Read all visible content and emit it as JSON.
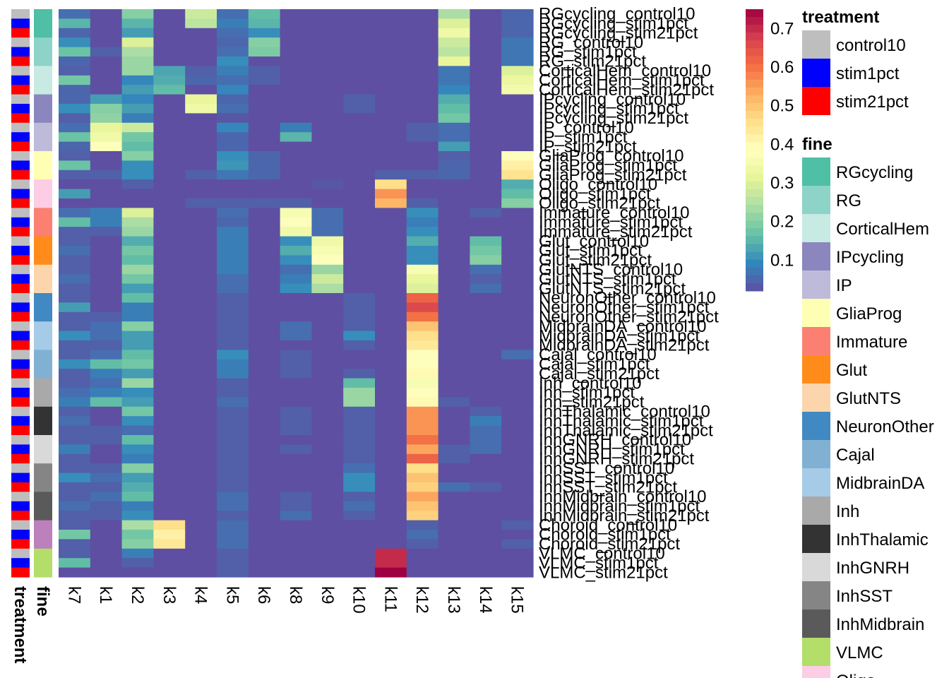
{
  "chart_data": {
    "type": "heatmap",
    "columns": [
      "k7",
      "k1",
      "k2",
      "k3",
      "k4",
      "k5",
      "k6",
      "k8",
      "k9",
      "k10",
      "k11",
      "k12",
      "k13",
      "k14",
      "k15"
    ],
    "rows": [
      "RGcycling_control10",
      "RGcycling_stim1pct",
      "RGcycling_stim21pct",
      "RG_control10",
      "RG_stim1pct",
      "RG_stim21pct",
      "CorticalHem_control10",
      "CorticalHem_stim1pct",
      "CorticalHem_stim21pct",
      "IPcycling_control10",
      "IPcycling_stim1pct",
      "IPcycling_stim21pct",
      "IP_control10",
      "IP_stim1pct",
      "IP_stim21pct",
      "GliaProg_control10",
      "GliaProg_stim1pct",
      "GliaProg_stim21pct",
      "Oligo_control10",
      "Oligo_stim1pct",
      "Oligo_stim21pct",
      "Immature_control10",
      "Immature_stim1pct",
      "Immature_stim21pct",
      "Glut_control10",
      "Glut_stim1pct",
      "Glut_stim21pct",
      "GlutNTS_control10",
      "GlutNTS_stim1pct",
      "GlutNTS_stim21pct",
      "NeuronOther_control10",
      "NeuronOther_stim1pct",
      "NeuronOther_stim21pct",
      "MidbrainDA_control10",
      "MidbrainDA_stim1pct",
      "MidbrainDA_stim21pct",
      "Cajal_control10",
      "Cajal_stim1pct",
      "Cajal_stim21pct",
      "Inh_control10",
      "Inh_stim1pct",
      "Inh_stim21pct",
      "InhThalamic_control10",
      "InhThalamic_stim1pct",
      "InhThalamic_stim21pct",
      "InhGNRH_control10",
      "InhGNRH_stim1pct",
      "InhGNRH_stim21pct",
      "InhSST_control10",
      "InhSST_stim1pct",
      "InhSST_stim21pct",
      "InhMidbrain_control10",
      "InhMidbrain_stim1pct",
      "InhMidbrain_stim21pct",
      "Choroid_control10",
      "Choroid_stim1pct",
      "Choroid_stim21pct",
      "VLMC_control10",
      "VLMC_stim1pct",
      "VLMC_stim21pct"
    ],
    "values": [
      [
        0.06,
        0.02,
        0.2,
        0.02,
        0.28,
        0.06,
        0.16,
        0.02,
        0.02,
        0.02,
        0.02,
        0.02,
        0.24,
        0.02,
        0.05
      ],
      [
        0.15,
        0.02,
        0.15,
        0.02,
        0.26,
        0.08,
        0.15,
        0.02,
        0.02,
        0.02,
        0.02,
        0.02,
        0.3,
        0.02,
        0.05
      ],
      [
        0.05,
        0.02,
        0.12,
        0.02,
        0.02,
        0.06,
        0.1,
        0.02,
        0.02,
        0.02,
        0.02,
        0.02,
        0.34,
        0.02,
        0.05
      ],
      [
        0.1,
        0.02,
        0.3,
        0.02,
        0.02,
        0.05,
        0.2,
        0.02,
        0.02,
        0.02,
        0.02,
        0.02,
        0.28,
        0.02,
        0.07
      ],
      [
        0.17,
        0.04,
        0.24,
        0.02,
        0.02,
        0.06,
        0.19,
        0.02,
        0.02,
        0.02,
        0.02,
        0.02,
        0.26,
        0.02,
        0.07
      ],
      [
        0.05,
        0.02,
        0.22,
        0.02,
        0.02,
        0.1,
        0.02,
        0.02,
        0.02,
        0.02,
        0.02,
        0.02,
        0.32,
        0.02,
        0.07
      ],
      [
        0.04,
        0.02,
        0.22,
        0.13,
        0.04,
        0.08,
        0.04,
        0.02,
        0.02,
        0.02,
        0.02,
        0.02,
        0.07,
        0.02,
        0.3
      ],
      [
        0.18,
        0.02,
        0.09,
        0.14,
        0.05,
        0.06,
        0.04,
        0.02,
        0.02,
        0.02,
        0.02,
        0.02,
        0.07,
        0.02,
        0.33
      ],
      [
        0.05,
        0.02,
        0.12,
        0.16,
        0.02,
        0.09,
        0.02,
        0.02,
        0.02,
        0.02,
        0.02,
        0.02,
        0.09,
        0.02,
        0.35
      ],
      [
        0.05,
        0.12,
        0.09,
        0.02,
        0.32,
        0.05,
        0.02,
        0.02,
        0.02,
        0.04,
        0.02,
        0.02,
        0.14,
        0.02,
        0.02
      ],
      [
        0.1,
        0.2,
        0.12,
        0.02,
        0.34,
        0.06,
        0.02,
        0.02,
        0.02,
        0.04,
        0.02,
        0.02,
        0.16,
        0.02,
        0.02
      ],
      [
        0.04,
        0.21,
        0.08,
        0.02,
        0.02,
        0.03,
        0.02,
        0.02,
        0.02,
        0.02,
        0.02,
        0.02,
        0.18,
        0.02,
        0.02
      ],
      [
        0.06,
        0.32,
        0.28,
        0.02,
        0.02,
        0.09,
        0.02,
        0.08,
        0.02,
        0.02,
        0.02,
        0.04,
        0.06,
        0.02,
        0.02
      ],
      [
        0.17,
        0.34,
        0.18,
        0.02,
        0.02,
        0.05,
        0.02,
        0.15,
        0.02,
        0.02,
        0.02,
        0.04,
        0.06,
        0.02,
        0.02
      ],
      [
        0.05,
        0.38,
        0.16,
        0.02,
        0.02,
        0.05,
        0.02,
        0.02,
        0.02,
        0.02,
        0.02,
        0.02,
        0.12,
        0.02,
        0.02
      ],
      [
        0.04,
        0.02,
        0.2,
        0.02,
        0.02,
        0.1,
        0.05,
        0.02,
        0.02,
        0.02,
        0.02,
        0.02,
        0.04,
        0.02,
        0.38
      ],
      [
        0.17,
        0.02,
        0.1,
        0.02,
        0.02,
        0.11,
        0.05,
        0.02,
        0.02,
        0.02,
        0.02,
        0.02,
        0.05,
        0.02,
        0.42
      ],
      [
        0.04,
        0.04,
        0.1,
        0.02,
        0.04,
        0.07,
        0.05,
        0.02,
        0.02,
        0.02,
        0.04,
        0.04,
        0.05,
        0.02,
        0.45
      ],
      [
        0.02,
        0.02,
        0.04,
        0.02,
        0.02,
        0.02,
        0.02,
        0.02,
        0.03,
        0.02,
        0.46,
        0.02,
        0.02,
        0.02,
        0.14
      ],
      [
        0.12,
        0.02,
        0.02,
        0.02,
        0.02,
        0.02,
        0.02,
        0.02,
        0.02,
        0.02,
        0.56,
        0.02,
        0.02,
        0.02,
        0.16
      ],
      [
        0.02,
        0.02,
        0.02,
        0.02,
        0.04,
        0.04,
        0.04,
        0.04,
        0.02,
        0.02,
        0.52,
        0.04,
        0.02,
        0.02,
        0.2
      ],
      [
        0.06,
        0.08,
        0.3,
        0.02,
        0.02,
        0.06,
        0.02,
        0.36,
        0.06,
        0.02,
        0.02,
        0.1,
        0.02,
        0.04,
        0.02
      ],
      [
        0.16,
        0.08,
        0.24,
        0.02,
        0.02,
        0.05,
        0.02,
        0.38,
        0.06,
        0.02,
        0.02,
        0.08,
        0.02,
        0.02,
        0.02
      ],
      [
        0.04,
        0.04,
        0.22,
        0.02,
        0.02,
        0.08,
        0.02,
        0.34,
        0.06,
        0.02,
        0.02,
        0.1,
        0.02,
        0.02,
        0.02
      ],
      [
        0.04,
        0.02,
        0.14,
        0.02,
        0.02,
        0.08,
        0.02,
        0.1,
        0.34,
        0.02,
        0.02,
        0.14,
        0.02,
        0.16,
        0.02
      ],
      [
        0.06,
        0.02,
        0.18,
        0.02,
        0.02,
        0.08,
        0.02,
        0.14,
        0.36,
        0.02,
        0.02,
        0.1,
        0.02,
        0.18,
        0.02
      ],
      [
        0.04,
        0.02,
        0.16,
        0.02,
        0.02,
        0.08,
        0.02,
        0.1,
        0.38,
        0.02,
        0.02,
        0.1,
        0.02,
        0.2,
        0.02
      ],
      [
        0.04,
        0.02,
        0.22,
        0.02,
        0.02,
        0.08,
        0.02,
        0.06,
        0.22,
        0.02,
        0.02,
        0.36,
        0.02,
        0.06,
        0.02
      ],
      [
        0.06,
        0.02,
        0.18,
        0.02,
        0.02,
        0.06,
        0.02,
        0.08,
        0.28,
        0.02,
        0.02,
        0.32,
        0.02,
        0.04,
        0.02
      ],
      [
        0.04,
        0.02,
        0.12,
        0.02,
        0.02,
        0.06,
        0.02,
        0.1,
        0.24,
        0.02,
        0.02,
        0.3,
        0.02,
        0.06,
        0.02
      ],
      [
        0.04,
        0.02,
        0.16,
        0.02,
        0.02,
        0.04,
        0.02,
        0.02,
        0.02,
        0.04,
        0.02,
        0.62,
        0.02,
        0.02,
        0.02
      ],
      [
        0.12,
        0.02,
        0.08,
        0.02,
        0.02,
        0.04,
        0.02,
        0.02,
        0.02,
        0.04,
        0.02,
        0.66,
        0.02,
        0.02,
        0.02
      ],
      [
        0.04,
        0.04,
        0.08,
        0.02,
        0.02,
        0.04,
        0.02,
        0.02,
        0.02,
        0.04,
        0.02,
        0.6,
        0.02,
        0.02,
        0.02
      ],
      [
        0.04,
        0.06,
        0.2,
        0.02,
        0.02,
        0.04,
        0.02,
        0.06,
        0.02,
        0.04,
        0.02,
        0.5,
        0.02,
        0.02,
        0.02
      ],
      [
        0.1,
        0.06,
        0.12,
        0.02,
        0.02,
        0.04,
        0.02,
        0.06,
        0.02,
        0.1,
        0.02,
        0.46,
        0.02,
        0.02,
        0.02
      ],
      [
        0.04,
        0.04,
        0.12,
        0.02,
        0.02,
        0.04,
        0.02,
        0.02,
        0.02,
        0.04,
        0.02,
        0.44,
        0.02,
        0.02,
        0.02
      ],
      [
        0.04,
        0.06,
        0.16,
        0.02,
        0.02,
        0.1,
        0.02,
        0.04,
        0.02,
        0.02,
        0.02,
        0.38,
        0.02,
        0.02,
        0.06
      ],
      [
        0.1,
        0.16,
        0.18,
        0.02,
        0.02,
        0.08,
        0.02,
        0.04,
        0.02,
        0.02,
        0.02,
        0.38,
        0.02,
        0.02,
        0.02
      ],
      [
        0.04,
        0.08,
        0.12,
        0.02,
        0.02,
        0.08,
        0.02,
        0.04,
        0.02,
        0.04,
        0.02,
        0.4,
        0.02,
        0.02,
        0.02
      ],
      [
        0.04,
        0.06,
        0.22,
        0.02,
        0.02,
        0.04,
        0.02,
        0.02,
        0.02,
        0.16,
        0.02,
        0.36,
        0.02,
        0.02,
        0.02
      ],
      [
        0.06,
        0.08,
        0.1,
        0.02,
        0.02,
        0.04,
        0.02,
        0.02,
        0.02,
        0.22,
        0.02,
        0.38,
        0.02,
        0.02,
        0.02
      ],
      [
        0.08,
        0.16,
        0.12,
        0.02,
        0.02,
        0.06,
        0.02,
        0.02,
        0.02,
        0.22,
        0.02,
        0.4,
        0.04,
        0.02,
        0.02
      ],
      [
        0.04,
        0.02,
        0.18,
        0.02,
        0.02,
        0.04,
        0.02,
        0.04,
        0.02,
        0.04,
        0.02,
        0.56,
        0.02,
        0.04,
        0.02
      ],
      [
        0.06,
        0.02,
        0.1,
        0.02,
        0.02,
        0.04,
        0.02,
        0.04,
        0.02,
        0.04,
        0.02,
        0.56,
        0.02,
        0.08,
        0.02
      ],
      [
        0.04,
        0.04,
        0.06,
        0.02,
        0.02,
        0.04,
        0.02,
        0.04,
        0.02,
        0.04,
        0.02,
        0.56,
        0.02,
        0.06,
        0.02
      ],
      [
        0.04,
        0.04,
        0.16,
        0.02,
        0.02,
        0.04,
        0.02,
        0.02,
        0.02,
        0.04,
        0.02,
        0.6,
        0.02,
        0.06,
        0.02
      ],
      [
        0.08,
        0.02,
        0.1,
        0.02,
        0.02,
        0.04,
        0.02,
        0.04,
        0.02,
        0.04,
        0.02,
        0.54,
        0.04,
        0.06,
        0.02
      ],
      [
        0.04,
        0.02,
        0.08,
        0.02,
        0.02,
        0.04,
        0.02,
        0.02,
        0.02,
        0.04,
        0.02,
        0.62,
        0.04,
        0.02,
        0.02
      ],
      [
        0.04,
        0.04,
        0.2,
        0.02,
        0.02,
        0.04,
        0.02,
        0.02,
        0.02,
        0.06,
        0.02,
        0.46,
        0.02,
        0.02,
        0.02
      ],
      [
        0.1,
        0.06,
        0.12,
        0.02,
        0.02,
        0.04,
        0.02,
        0.02,
        0.02,
        0.1,
        0.02,
        0.5,
        0.02,
        0.02,
        0.02
      ],
      [
        0.04,
        0.04,
        0.14,
        0.02,
        0.02,
        0.04,
        0.02,
        0.02,
        0.02,
        0.1,
        0.02,
        0.48,
        0.06,
        0.04,
        0.02
      ],
      [
        0.04,
        0.06,
        0.16,
        0.02,
        0.02,
        0.06,
        0.02,
        0.04,
        0.02,
        0.04,
        0.02,
        0.54,
        0.02,
        0.02,
        0.02
      ],
      [
        0.06,
        0.04,
        0.08,
        0.02,
        0.02,
        0.06,
        0.02,
        0.04,
        0.02,
        0.06,
        0.02,
        0.5,
        0.02,
        0.02,
        0.02
      ],
      [
        0.04,
        0.04,
        0.1,
        0.02,
        0.02,
        0.04,
        0.02,
        0.06,
        0.02,
        0.04,
        0.02,
        0.48,
        0.02,
        0.02,
        0.02
      ],
      [
        0.04,
        0.02,
        0.24,
        0.46,
        0.02,
        0.06,
        0.02,
        0.02,
        0.02,
        0.02,
        0.02,
        0.04,
        0.02,
        0.02,
        0.04
      ],
      [
        0.18,
        0.02,
        0.18,
        0.42,
        0.02,
        0.06,
        0.02,
        0.02,
        0.02,
        0.02,
        0.02,
        0.06,
        0.02,
        0.02,
        0.02
      ],
      [
        0.04,
        0.02,
        0.2,
        0.44,
        0.02,
        0.06,
        0.02,
        0.02,
        0.02,
        0.02,
        0.02,
        0.04,
        0.02,
        0.02,
        0.04
      ],
      [
        0.04,
        0.02,
        0.08,
        0.02,
        0.02,
        0.04,
        0.02,
        0.02,
        0.02,
        0.02,
        0.7,
        0.02,
        0.02,
        0.02,
        0.02
      ],
      [
        0.16,
        0.02,
        0.04,
        0.02,
        0.02,
        0.04,
        0.02,
        0.02,
        0.02,
        0.02,
        0.7,
        0.02,
        0.02,
        0.02,
        0.02
      ],
      [
        0.02,
        0.02,
        0.02,
        0.02,
        0.02,
        0.04,
        0.02,
        0.02,
        0.02,
        0.02,
        0.75,
        0.02,
        0.02,
        0.02,
        0.02
      ]
    ],
    "colorbar": {
      "min": 0.02,
      "max": 0.75,
      "ticks": [
        0.1,
        0.2,
        0.3,
        0.4,
        0.5,
        0.6,
        0.7
      ],
      "palette": [
        "#5E4FA2",
        "#3288BD",
        "#66C2A5",
        "#ABDDA4",
        "#E6F598",
        "#FFFFBF",
        "#FEE08B",
        "#FDAE61",
        "#F46D43",
        "#D53E4F",
        "#9E0142"
      ]
    },
    "annotations": [
      {
        "name": "treatment",
        "title": "treatment",
        "levels": [
          {
            "label": "control10",
            "color": "#BEBEBE"
          },
          {
            "label": "stim1pct",
            "color": "#0000FF"
          },
          {
            "label": "stim21pct",
            "color": "#FF0000"
          }
        ]
      },
      {
        "name": "fine",
        "title": "fine",
        "levels": [
          {
            "label": "RGcycling",
            "color": "#4FBFA5"
          },
          {
            "label": "RG",
            "color": "#8DD3C7"
          },
          {
            "label": "CorticalHem",
            "color": "#C7EAE3"
          },
          {
            "label": "IPcycling",
            "color": "#8C86BF"
          },
          {
            "label": "IP",
            "color": "#BEBADA"
          },
          {
            "label": "GliaProg",
            "color": "#FFFFB3"
          },
          {
            "label": "Immature",
            "color": "#FB8072"
          },
          {
            "label": "Glut",
            "color": "#FF8C1A"
          },
          {
            "label": "GlutNTS",
            "color": "#FDD5AC"
          },
          {
            "label": "NeuronOther",
            "color": "#4189C2"
          },
          {
            "label": "Cajal",
            "color": "#80B1D3"
          },
          {
            "label": "MidbrainDA",
            "color": "#A6CBE6"
          },
          {
            "label": "Inh",
            "color": "#A9A9A9"
          },
          {
            "label": "InhThalamic",
            "color": "#333333"
          },
          {
            "label": "InhGNRH",
            "color": "#D9D9D9"
          },
          {
            "label": "InhSST",
            "color": "#858585"
          },
          {
            "label": "InhMidbrain",
            "color": "#5A5A5A"
          },
          {
            "label": "Choroid",
            "color": "#BC80BD"
          },
          {
            "label": "VLMC",
            "color": "#B3DE69"
          },
          {
            "label": "Oligo",
            "color": "#FCCDE5"
          }
        ],
        "legend_order": [
          "RGcycling",
          "RG",
          "CorticalHem",
          "IPcycling",
          "IP",
          "GliaProg",
          "Immature",
          "Glut",
          "GlutNTS",
          "NeuronOther",
          "Cajal",
          "MidbrainDA",
          "Inh",
          "InhThalamic",
          "InhGNRH",
          "InhSST",
          "InhMidbrain",
          "VLMC",
          "Oligo"
        ]
      }
    ]
  }
}
